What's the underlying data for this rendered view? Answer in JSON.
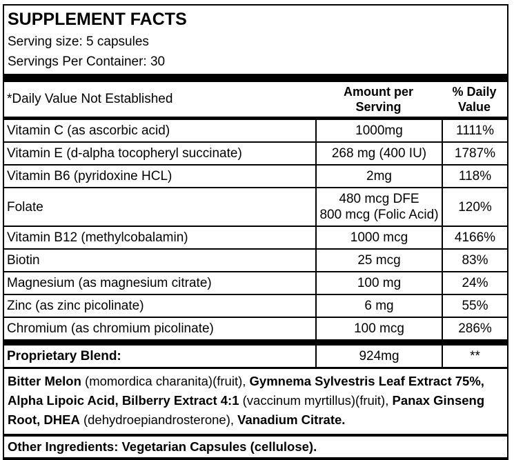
{
  "header": {
    "title": "SUPPLEMENT FACTS",
    "serving_size": "Serving size: 5 capsules",
    "servings_per_container": "Servings Per Container: 30"
  },
  "table": {
    "columns": {
      "note": "*Daily Value Not Established",
      "amount": "Amount per\nServing",
      "daily_value": "% Daily\nValue"
    },
    "rows": [
      {
        "name": "Vitamin C (as ascorbic acid)",
        "amount": "1000mg",
        "daily_value": "1111%"
      },
      {
        "name": "Vitamin E (d-alpha tocopheryl succinate)",
        "amount": "268 mg (400 IU)",
        "daily_value": "1787%"
      },
      {
        "name": "Vitamin B6 (pyridoxine HCL)",
        "amount": "2mg",
        "daily_value": "118%"
      },
      {
        "name": "Folate",
        "amount": "480 mcg DFE\n800 mcg (Folic Acid)",
        "daily_value": "120%"
      },
      {
        "name": "Vitamin B12 (methylcobalamin)",
        "amount": "1000 mcg",
        "daily_value": "4166%"
      },
      {
        "name": "Biotin",
        "amount": "25 mcg",
        "daily_value": "83%"
      },
      {
        "name": "Magnesium (as magnesium citrate)",
        "amount": "100 mg",
        "daily_value": "24%"
      },
      {
        "name": "Zinc (as zinc picolinate)",
        "amount": "6 mg",
        "daily_value": "55%"
      },
      {
        "name": "Chromium (as chromium picolinate)",
        "amount": "100 mcg",
        "daily_value": "286%"
      }
    ],
    "proprietary_blend": {
      "label": "Proprietary Blend:",
      "amount": "924mg",
      "daily_value": "**"
    }
  },
  "blend_description": {
    "segments": [
      {
        "text": "Bitter Melon",
        "bold": true
      },
      {
        "text": " (momordica charanita)(fruit), ",
        "bold": false
      },
      {
        "text": "Gymnema Sylvestris Leaf Extract 75%, Alpha Lipoic Acid, Bilberry Extract 4:1",
        "bold": true
      },
      {
        "text": " (vaccinum myrtillus)(fruit), ",
        "bold": false
      },
      {
        "text": "Panax Ginseng Root, DHEA",
        "bold": true
      },
      {
        "text": " (dehydroepiandrosterone), ",
        "bold": false
      },
      {
        "text": "Vanadium Citrate.",
        "bold": true
      }
    ]
  },
  "other_ingredients": {
    "text": "Other Ingredients: Vegetarian Capsules (cellulose)."
  },
  "colors": {
    "text": "#000000",
    "background": "#ffffff",
    "border": "#000000"
  }
}
